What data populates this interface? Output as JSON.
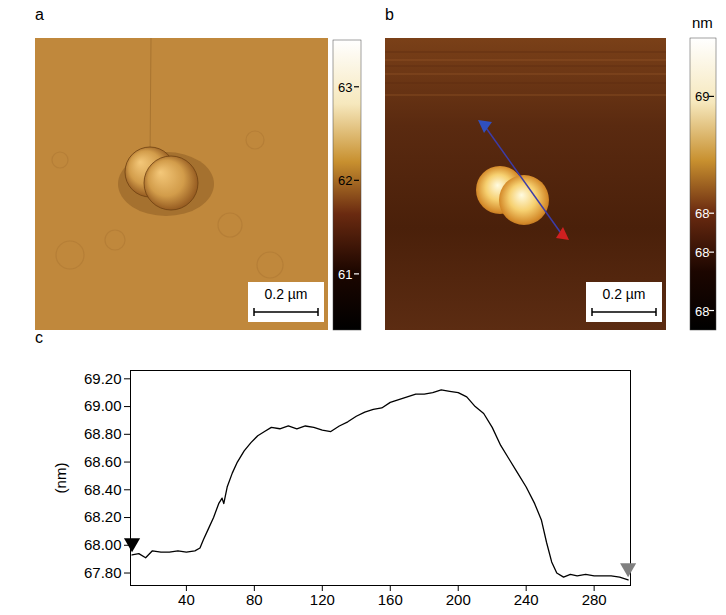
{
  "panels": {
    "a": {
      "panel_label": "a",
      "scale_bar": "0.2 µm",
      "color_bar": {
        "range": [
          60.4,
          63.5
        ],
        "ticks": [
          61,
          62,
          63
        ]
      }
    },
    "b": {
      "panel_label": "b",
      "scale_bar": "0.2 µm",
      "color_bar": {
        "unit": "nm",
        "range": [
          67.8,
          69.3
        ],
        "ticks": [
          69,
          {
            "value": 68.4,
            "label": "68"
          },
          {
            "value": 68.2,
            "label": "68"
          },
          {
            "value": 67.9,
            "label": "68"
          }
        ]
      }
    }
  },
  "chart_data": {
    "panel_label": "c",
    "type": "line",
    "y_label": "(nm)",
    "color": "#000000",
    "line_style": "solid",
    "x": [
      8,
      12,
      16,
      20,
      25,
      30,
      35,
      40,
      45,
      48,
      50,
      53,
      56,
      59,
      61,
      62,
      64,
      67,
      70,
      74,
      78,
      82,
      86,
      90,
      95,
      100,
      105,
      110,
      115,
      120,
      125,
      130,
      135,
      140,
      145,
      150,
      155,
      160,
      165,
      170,
      175,
      180,
      185,
      190,
      195,
      200,
      205,
      210,
      215,
      220,
      225,
      230,
      235,
      240,
      245,
      249,
      252,
      255,
      258,
      262,
      266,
      270,
      275,
      280,
      285,
      290,
      295,
      300
    ],
    "values": [
      67.93,
      67.94,
      67.91,
      67.96,
      67.95,
      67.95,
      67.96,
      67.95,
      67.96,
      67.98,
      68.04,
      68.12,
      68.2,
      68.3,
      68.34,
      68.3,
      68.42,
      68.52,
      68.6,
      68.68,
      68.74,
      68.79,
      68.82,
      68.85,
      68.84,
      68.86,
      68.84,
      68.86,
      68.85,
      68.83,
      68.82,
      68.86,
      68.89,
      68.93,
      68.96,
      68.98,
      68.99,
      69.03,
      69.05,
      69.07,
      69.09,
      69.09,
      69.1,
      69.12,
      69.11,
      69.1,
      69.07,
      69.0,
      68.95,
      68.85,
      68.72,
      68.62,
      68.52,
      68.42,
      68.3,
      68.18,
      68.02,
      67.88,
      67.8,
      67.77,
      67.79,
      67.78,
      67.79,
      67.78,
      67.78,
      67.78,
      67.77,
      67.75
    ],
    "xlim": [
      7.1,
      301.4
    ],
    "xticks": [
      40,
      80,
      120,
      160,
      200,
      240,
      280
    ],
    "ylim": [
      67.71,
      69.26
    ],
    "yticks": [
      {
        "value": 67.8,
        "label": "67.80"
      },
      {
        "value": 68,
        "label": "68.00"
      },
      {
        "value": 68.2,
        "label": "68.20"
      },
      {
        "value": 68.4,
        "label": "68.40"
      },
      {
        "value": 68.6,
        "label": "68.60"
      },
      {
        "value": 68.8,
        "label": "68.80"
      },
      {
        "value": 69,
        "label": "69.00"
      },
      {
        "value": 69.2,
        "label": "69.20"
      }
    ]
  }
}
